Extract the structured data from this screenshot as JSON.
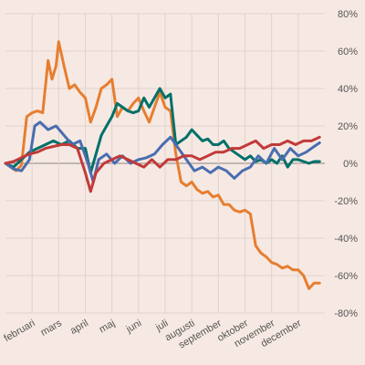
{
  "chart_data": {
    "type": "line",
    "title": "",
    "xlabel": "",
    "ylabel": "",
    "x_range": [
      0,
      12
    ],
    "ylim": [
      -80,
      80
    ],
    "y_ticks": [
      80,
      60,
      40,
      20,
      0,
      -20,
      -40,
      -60,
      -80
    ],
    "y_tick_labels": [
      "80%",
      "60%",
      "40%",
      "20%",
      "0%",
      "-20%",
      "-40%",
      "-60%",
      "-80%"
    ],
    "x_tick_labels": [
      "februari",
      "mars",
      "april",
      "maj",
      "juni",
      "juli",
      "augusti",
      "september",
      "oktober",
      "november",
      "december"
    ],
    "grid": true,
    "legend": "none",
    "series": [
      {
        "color": "#e67e30",
        "points": [
          [
            0,
            0
          ],
          [
            0.2,
            -2
          ],
          [
            0.4,
            -4
          ],
          [
            0.6,
            -1
          ],
          [
            0.8,
            25
          ],
          [
            1.0,
            27
          ],
          [
            1.2,
            28
          ],
          [
            1.4,
            27
          ],
          [
            1.6,
            55
          ],
          [
            1.75,
            45
          ],
          [
            1.9,
            52
          ],
          [
            2.0,
            65
          ],
          [
            2.2,
            52
          ],
          [
            2.4,
            40
          ],
          [
            2.6,
            42
          ],
          [
            2.8,
            38
          ],
          [
            3.0,
            35
          ],
          [
            3.2,
            22
          ],
          [
            3.4,
            30
          ],
          [
            3.6,
            40
          ],
          [
            3.8,
            42
          ],
          [
            4.0,
            45
          ],
          [
            4.2,
            25
          ],
          [
            4.4,
            30
          ],
          [
            4.6,
            28
          ],
          [
            4.8,
            32
          ],
          [
            5.0,
            35
          ],
          [
            5.2,
            28
          ],
          [
            5.4,
            22
          ],
          [
            5.6,
            30
          ],
          [
            5.8,
            38
          ],
          [
            6.0,
            30
          ],
          [
            6.2,
            28
          ],
          [
            6.4,
            5
          ],
          [
            6.6,
            -10
          ],
          [
            6.8,
            -12
          ],
          [
            7.0,
            -10
          ],
          [
            7.2,
            -14
          ],
          [
            7.4,
            -16
          ],
          [
            7.6,
            -15
          ],
          [
            7.8,
            -18
          ],
          [
            8.0,
            -17
          ],
          [
            8.2,
            -22
          ],
          [
            8.4,
            -22
          ],
          [
            8.6,
            -25
          ],
          [
            8.8,
            -26
          ],
          [
            9.0,
            -25
          ],
          [
            9.2,
            -27
          ],
          [
            9.4,
            -44
          ],
          [
            9.6,
            -48
          ],
          [
            9.8,
            -50
          ],
          [
            10.0,
            -53
          ],
          [
            10.2,
            -54
          ],
          [
            10.4,
            -56
          ],
          [
            10.6,
            -55
          ],
          [
            10.8,
            -57
          ],
          [
            11.0,
            -57
          ],
          [
            11.2,
            -60
          ],
          [
            11.4,
            -67
          ],
          [
            11.6,
            -64
          ],
          [
            11.8,
            -64
          ]
        ]
      },
      {
        "color": "#00706a",
        "points": [
          [
            0,
            0
          ],
          [
            0.3,
            -2
          ],
          [
            0.6,
            2
          ],
          [
            0.9,
            6
          ],
          [
            1.2,
            8
          ],
          [
            1.5,
            10
          ],
          [
            1.8,
            12
          ],
          [
            2.1,
            10
          ],
          [
            2.4,
            12
          ],
          [
            2.7,
            8
          ],
          [
            3.0,
            8
          ],
          [
            3.2,
            -5
          ],
          [
            3.4,
            5
          ],
          [
            3.6,
            15
          ],
          [
            3.8,
            20
          ],
          [
            4.0,
            25
          ],
          [
            4.2,
            32
          ],
          [
            4.4,
            30
          ],
          [
            4.6,
            28
          ],
          [
            4.8,
            27
          ],
          [
            5.0,
            28
          ],
          [
            5.2,
            35
          ],
          [
            5.4,
            30
          ],
          [
            5.6,
            35
          ],
          [
            5.8,
            40
          ],
          [
            6.0,
            35
          ],
          [
            6.2,
            37
          ],
          [
            6.4,
            10
          ],
          [
            6.6,
            12
          ],
          [
            6.8,
            14
          ],
          [
            7.0,
            18
          ],
          [
            7.2,
            15
          ],
          [
            7.4,
            12
          ],
          [
            7.6,
            13
          ],
          [
            7.8,
            10
          ],
          [
            8.0,
            10
          ],
          [
            8.2,
            12
          ],
          [
            8.4,
            8
          ],
          [
            8.6,
            6
          ],
          [
            8.8,
            4
          ],
          [
            9.0,
            2
          ],
          [
            9.2,
            4
          ],
          [
            9.4,
            1
          ],
          [
            9.6,
            2
          ],
          [
            9.8,
            0
          ],
          [
            10.0,
            2
          ],
          [
            10.2,
            0
          ],
          [
            10.4,
            4
          ],
          [
            10.6,
            -2
          ],
          [
            10.8,
            2
          ],
          [
            11.0,
            2
          ],
          [
            11.2,
            1
          ],
          [
            11.4,
            0
          ],
          [
            11.6,
            1
          ],
          [
            11.8,
            1
          ]
        ]
      },
      {
        "color": "#4a6db0",
        "points": [
          [
            0,
            0
          ],
          [
            0.3,
            -3
          ],
          [
            0.6,
            -4
          ],
          [
            0.9,
            2
          ],
          [
            1.1,
            20
          ],
          [
            1.3,
            22
          ],
          [
            1.6,
            18
          ],
          [
            1.9,
            20
          ],
          [
            2.2,
            15
          ],
          [
            2.5,
            10
          ],
          [
            2.8,
            12
          ],
          [
            3.1,
            0
          ],
          [
            3.3,
            -10
          ],
          [
            3.5,
            2
          ],
          [
            3.8,
            5
          ],
          [
            4.1,
            0
          ],
          [
            4.4,
            4
          ],
          [
            4.7,
            0
          ],
          [
            5.0,
            2
          ],
          [
            5.3,
            3
          ],
          [
            5.6,
            5
          ],
          [
            5.9,
            10
          ],
          [
            6.2,
            14
          ],
          [
            6.5,
            8
          ],
          [
            6.8,
            2
          ],
          [
            7.1,
            -4
          ],
          [
            7.4,
            -2
          ],
          [
            7.7,
            -5
          ],
          [
            8.0,
            -2
          ],
          [
            8.3,
            -4
          ],
          [
            8.6,
            -8
          ],
          [
            8.9,
            -4
          ],
          [
            9.2,
            -2
          ],
          [
            9.5,
            4
          ],
          [
            9.8,
            0
          ],
          [
            10.1,
            8
          ],
          [
            10.4,
            2
          ],
          [
            10.7,
            8
          ],
          [
            11.0,
            4
          ],
          [
            11.3,
            6
          ],
          [
            11.6,
            9
          ],
          [
            11.8,
            11
          ]
        ]
      },
      {
        "color": "#c13a3a",
        "points": [
          [
            0,
            0
          ],
          [
            0.3,
            1
          ],
          [
            0.6,
            3
          ],
          [
            0.9,
            5
          ],
          [
            1.2,
            6
          ],
          [
            1.5,
            8
          ],
          [
            1.8,
            9
          ],
          [
            2.1,
            10
          ],
          [
            2.4,
            10
          ],
          [
            2.7,
            8
          ],
          [
            3.0,
            -5
          ],
          [
            3.2,
            -15
          ],
          [
            3.4,
            -5
          ],
          [
            3.7,
            0
          ],
          [
            4.0,
            2
          ],
          [
            4.3,
            4
          ],
          [
            4.6,
            2
          ],
          [
            4.9,
            0
          ],
          [
            5.2,
            -2
          ],
          [
            5.5,
            2
          ],
          [
            5.8,
            -2
          ],
          [
            6.1,
            2
          ],
          [
            6.4,
            2
          ],
          [
            6.7,
            4
          ],
          [
            7.0,
            4
          ],
          [
            7.3,
            2
          ],
          [
            7.6,
            4
          ],
          [
            7.9,
            6
          ],
          [
            8.2,
            6
          ],
          [
            8.5,
            8
          ],
          [
            8.8,
            8
          ],
          [
            9.1,
            10
          ],
          [
            9.4,
            12
          ],
          [
            9.7,
            8
          ],
          [
            10.0,
            10
          ],
          [
            10.3,
            10
          ],
          [
            10.6,
            12
          ],
          [
            10.9,
            10
          ],
          [
            11.2,
            12
          ],
          [
            11.5,
            12
          ],
          [
            11.8,
            14
          ]
        ]
      }
    ]
  }
}
